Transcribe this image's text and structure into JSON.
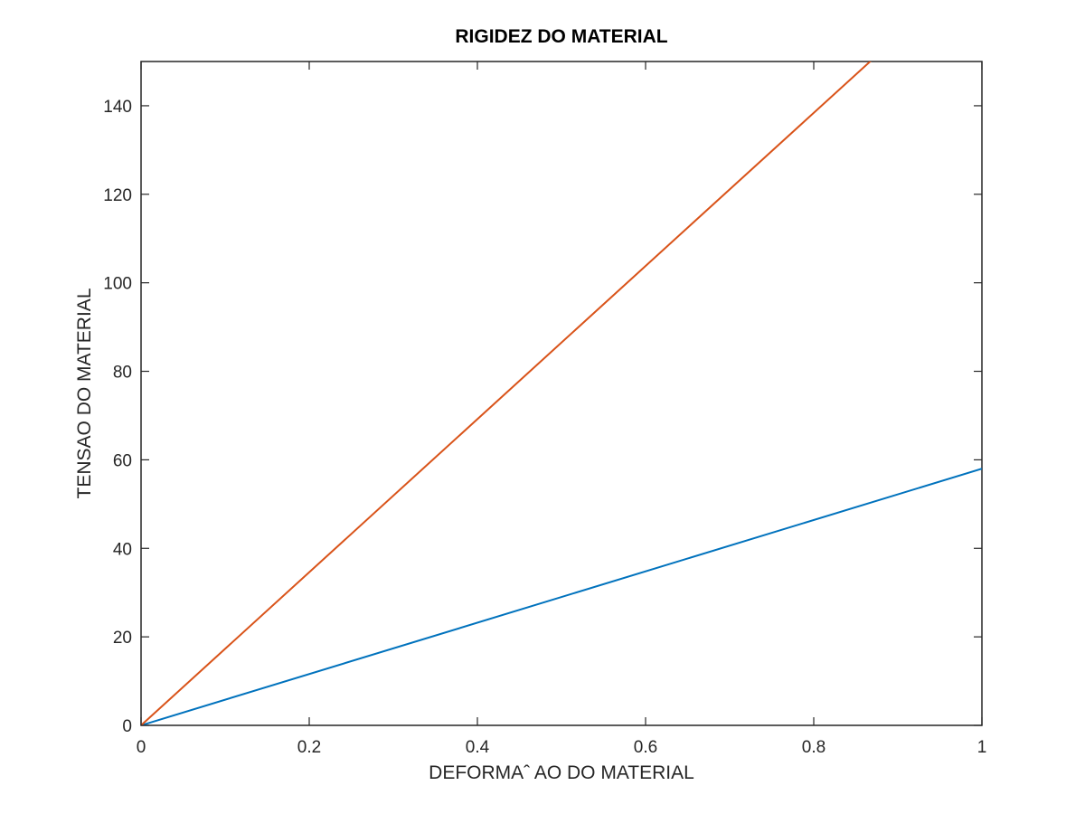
{
  "chart_data": {
    "type": "line",
    "title": "RIGIDEZ DO MATERIAL",
    "xlabel": "DEFORMAˆ AO DO MATERIAL",
    "ylabel": "TENSAO DO MATERIAL",
    "xlim": [
      0,
      1
    ],
    "ylim": [
      0,
      150
    ],
    "xticks": [
      0,
      0.2,
      0.4,
      0.6,
      0.8,
      1
    ],
    "xtick_labels": [
      "0",
      "0.2",
      "0.4",
      "0.6",
      "0.8",
      "1"
    ],
    "yticks": [
      0,
      20,
      40,
      60,
      80,
      100,
      120,
      140
    ],
    "ytick_labels": [
      "0",
      "20",
      "40",
      "60",
      "80",
      "100",
      "120",
      "140"
    ],
    "grid": false,
    "series": [
      {
        "color": "#0072bd",
        "x": [
          0,
          1
        ],
        "y": [
          0,
          58
        ]
      },
      {
        "color": "#d95319",
        "x": [
          0,
          1
        ],
        "y": [
          0,
          173
        ]
      }
    ]
  }
}
